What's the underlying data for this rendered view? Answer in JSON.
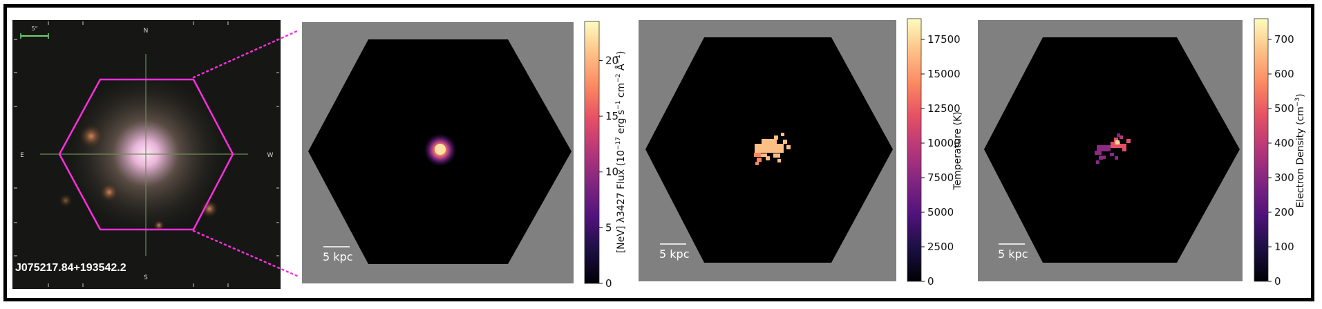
{
  "thumbnail": {
    "object_name": "J075217.84+193542.2",
    "scale_label": "5\"",
    "compass": {
      "north": "N",
      "south": "S",
      "east": "E",
      "west": "W"
    },
    "overlay_color": "#ff2de0"
  },
  "panels": [
    {
      "scale_label": "5 kpc",
      "colorbar_label_base": "[NeV] λ3427 Flux (10",
      "colorbar_label_units": "erg s",
      "colorbar_ticks": [
        "0",
        "5",
        "10",
        "15",
        "20"
      ],
      "colorbar_range": [
        0,
        23.5
      ]
    },
    {
      "scale_label": "5 kpc",
      "colorbar_label": "Temperature (K)",
      "colorbar_ticks": [
        "0",
        "2500",
        "5000",
        "7500",
        "10000",
        "12500",
        "15000",
        "17500"
      ],
      "colorbar_range": [
        0,
        19000
      ]
    },
    {
      "scale_label": "5 kpc",
      "colorbar_label": "Electron Density (cm",
      "colorbar_ticks": [
        "0",
        "100",
        "200",
        "300",
        "400",
        "500",
        "600",
        "700"
      ],
      "colorbar_range": [
        0,
        760
      ]
    }
  ],
  "colors": {
    "background_gray": "#808080",
    "map_black": "#000000",
    "frame": "#000000"
  }
}
